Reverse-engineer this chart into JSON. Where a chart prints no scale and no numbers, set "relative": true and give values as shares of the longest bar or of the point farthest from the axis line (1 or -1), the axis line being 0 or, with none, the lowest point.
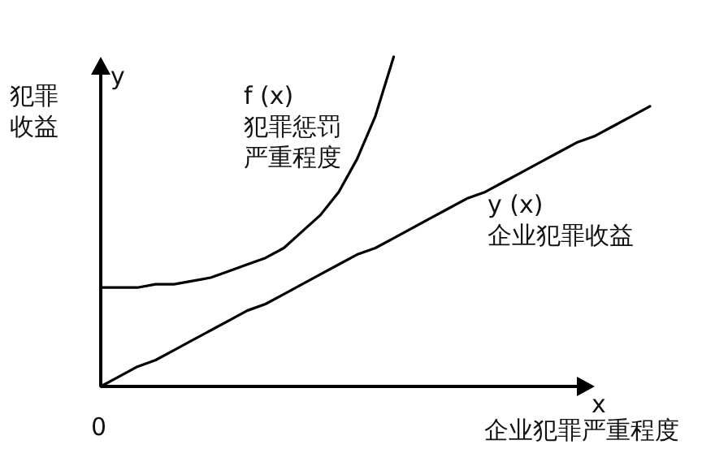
{
  "chart_data": {
    "type": "line",
    "relative": true,
    "ylabel": "犯罪收益",
    "xlabel": "企业犯罪严重程度",
    "annotations": [
      "y",
      "x",
      "0"
    ],
    "categories": [
      null,
      null,
      null,
      null,
      null,
      null,
      null,
      null,
      null,
      null,
      null,
      null,
      null,
      null,
      null,
      null,
      null,
      null,
      null,
      null,
      null,
      null,
      null,
      null,
      null,
      null,
      null,
      null,
      null,
      null,
      null
    ],
    "series": [
      {
        "name": "f (x) 犯罪惩罚严重程度",
        "color": "#000000",
        "values": [
          0.3,
          0.3,
          0.3,
          0.31,
          0.31,
          0.32,
          0.33,
          0.35,
          0.37,
          0.39,
          0.42,
          0.47,
          0.52,
          0.59,
          0.69,
          0.82,
          1.0,
          null,
          null,
          null,
          null,
          null,
          null,
          null,
          null,
          null,
          null,
          null,
          null,
          null,
          null
        ]
      },
      {
        "name": "y (x) 企业犯罪收益",
        "color": "#000000",
        "values": [
          0,
          0.03,
          0.06,
          0.08,
          0.11,
          0.14,
          0.17,
          0.2,
          0.23,
          0.25,
          0.28,
          0.31,
          0.34,
          0.37,
          0.4,
          0.42,
          0.45,
          0.48,
          0.51,
          0.54,
          0.57,
          0.59,
          0.62,
          0.65,
          0.68,
          0.71,
          0.74,
          0.76,
          0.79,
          0.82,
          0.85
        ]
      }
    ],
    "legend": false
  }
}
